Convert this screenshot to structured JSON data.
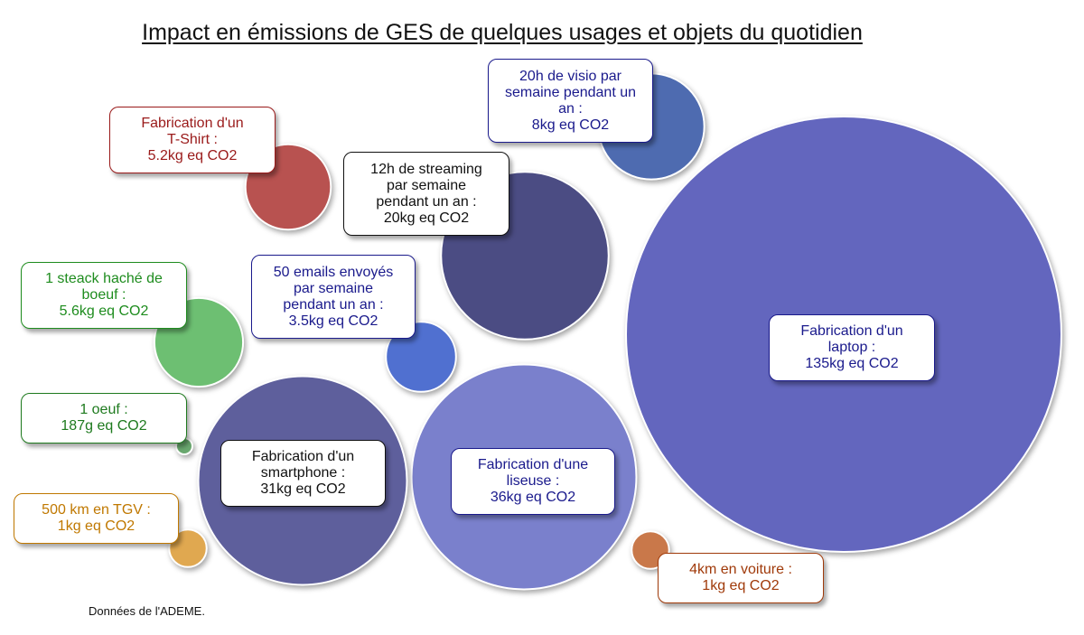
{
  "chart_data": {
    "type": "bubble",
    "title": "Impact en émissions de GES de quelques usages et objets du quotidien",
    "source_note": "Données de l'ADEME.",
    "items": [
      {
        "key": "laptop",
        "value_kg": 135,
        "color": "#6366BE",
        "text_color": "#1A1A8C",
        "lines": [
          "Fabrication d'un",
          "laptop :",
          "135kg eq CO2"
        ]
      },
      {
        "key": "liseuse",
        "value_kg": 36,
        "color": "#7A80CC",
        "text_color": "#1A1A8C",
        "lines": [
          "Fabrication d'une",
          "liseuse :",
          "36kg eq CO2"
        ]
      },
      {
        "key": "smartphone",
        "value_kg": 31,
        "color": "#5E5F9C",
        "text_color": "#111111",
        "lines": [
          "Fabrication d'un",
          "smartphone :",
          "31kg eq CO2"
        ]
      },
      {
        "key": "streaming",
        "value_kg": 20,
        "color": "#4B4C83",
        "text_color": "#111111",
        "lines": [
          "12h de streaming",
          "par semaine",
          "pendant un an :",
          "20kg eq CO2"
        ]
      },
      {
        "key": "visio",
        "value_kg": 8,
        "color": "#4E6BB0",
        "text_color": "#1A1A8C",
        "lines": [
          "20h de visio par",
          "semaine pendant un",
          "an :",
          "8kg eq CO2"
        ]
      },
      {
        "key": "steack",
        "value_kg": 5.6,
        "color": "#6DBF72",
        "text_color": "#1E8C1E",
        "lines": [
          "1 steack haché de",
          "boeuf :",
          "5.6kg eq CO2"
        ]
      },
      {
        "key": "tshirt",
        "value_kg": 5.2,
        "color": "#B85250",
        "text_color": "#9A1A1A",
        "lines": [
          "Fabrication d'un",
          "T-Shirt :",
          "5.2kg eq CO2"
        ]
      },
      {
        "key": "emails",
        "value_kg": 3.5,
        "color": "#5070D0",
        "text_color": "#1A1A8C",
        "lines": [
          "50 emails envoyés",
          "par semaine",
          "pendant un an :",
          "3.5kg eq CO2"
        ]
      },
      {
        "key": "tgv",
        "value_kg": 1,
        "color": "#E0A850",
        "text_color": "#C07800",
        "lines": [
          "500 km en TGV :",
          "1kg eq CO2"
        ]
      },
      {
        "key": "voiture",
        "value_kg": 1,
        "color": "#C9784A",
        "text_color": "#A03A0A",
        "lines": [
          "4km en voiture :",
          "1kg eq CO2"
        ]
      },
      {
        "key": "oeuf",
        "value_kg": 0.187,
        "color": "#6AA86F",
        "text_color": "#1E7A1E",
        "lines": [
          "1 oeuf :",
          "187g eq CO2"
        ]
      }
    ]
  }
}
